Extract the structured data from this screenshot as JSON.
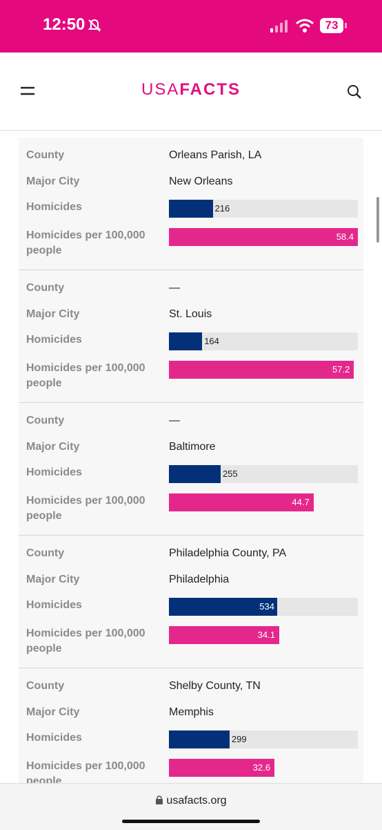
{
  "status_bar": {
    "time": "12:50",
    "battery": "73"
  },
  "header": {
    "logo_light": "USA",
    "logo_bold": "FACTS"
  },
  "field_labels": {
    "county": "County",
    "city": "Major City",
    "homicides": "Homicides",
    "rate": "Homicides per 100,000 people"
  },
  "homicides_xlim": [
    0,
    932
  ],
  "rate_xlim": [
    0,
    58.4
  ],
  "colors": {
    "homicides": "#04307a",
    "rate": "#e4288b"
  },
  "cards": [
    {
      "county": "Orleans Parish, LA",
      "city": "New Orleans",
      "homicides": 216,
      "rate": 58.4
    },
    {
      "county": "—",
      "city": "St. Louis",
      "homicides": 164,
      "rate": 57.2
    },
    {
      "county": "—",
      "city": "Baltimore",
      "homicides": 255,
      "rate": 44.7
    },
    {
      "county": "Philadelphia County, PA",
      "city": "Philadelphia",
      "homicides": 534,
      "rate": 34.1
    },
    {
      "county": "Shelby County, TN",
      "city": "Memphis",
      "homicides": 299,
      "rate": 32.6
    }
  ],
  "footer": {
    "url": "usafacts.org"
  }
}
